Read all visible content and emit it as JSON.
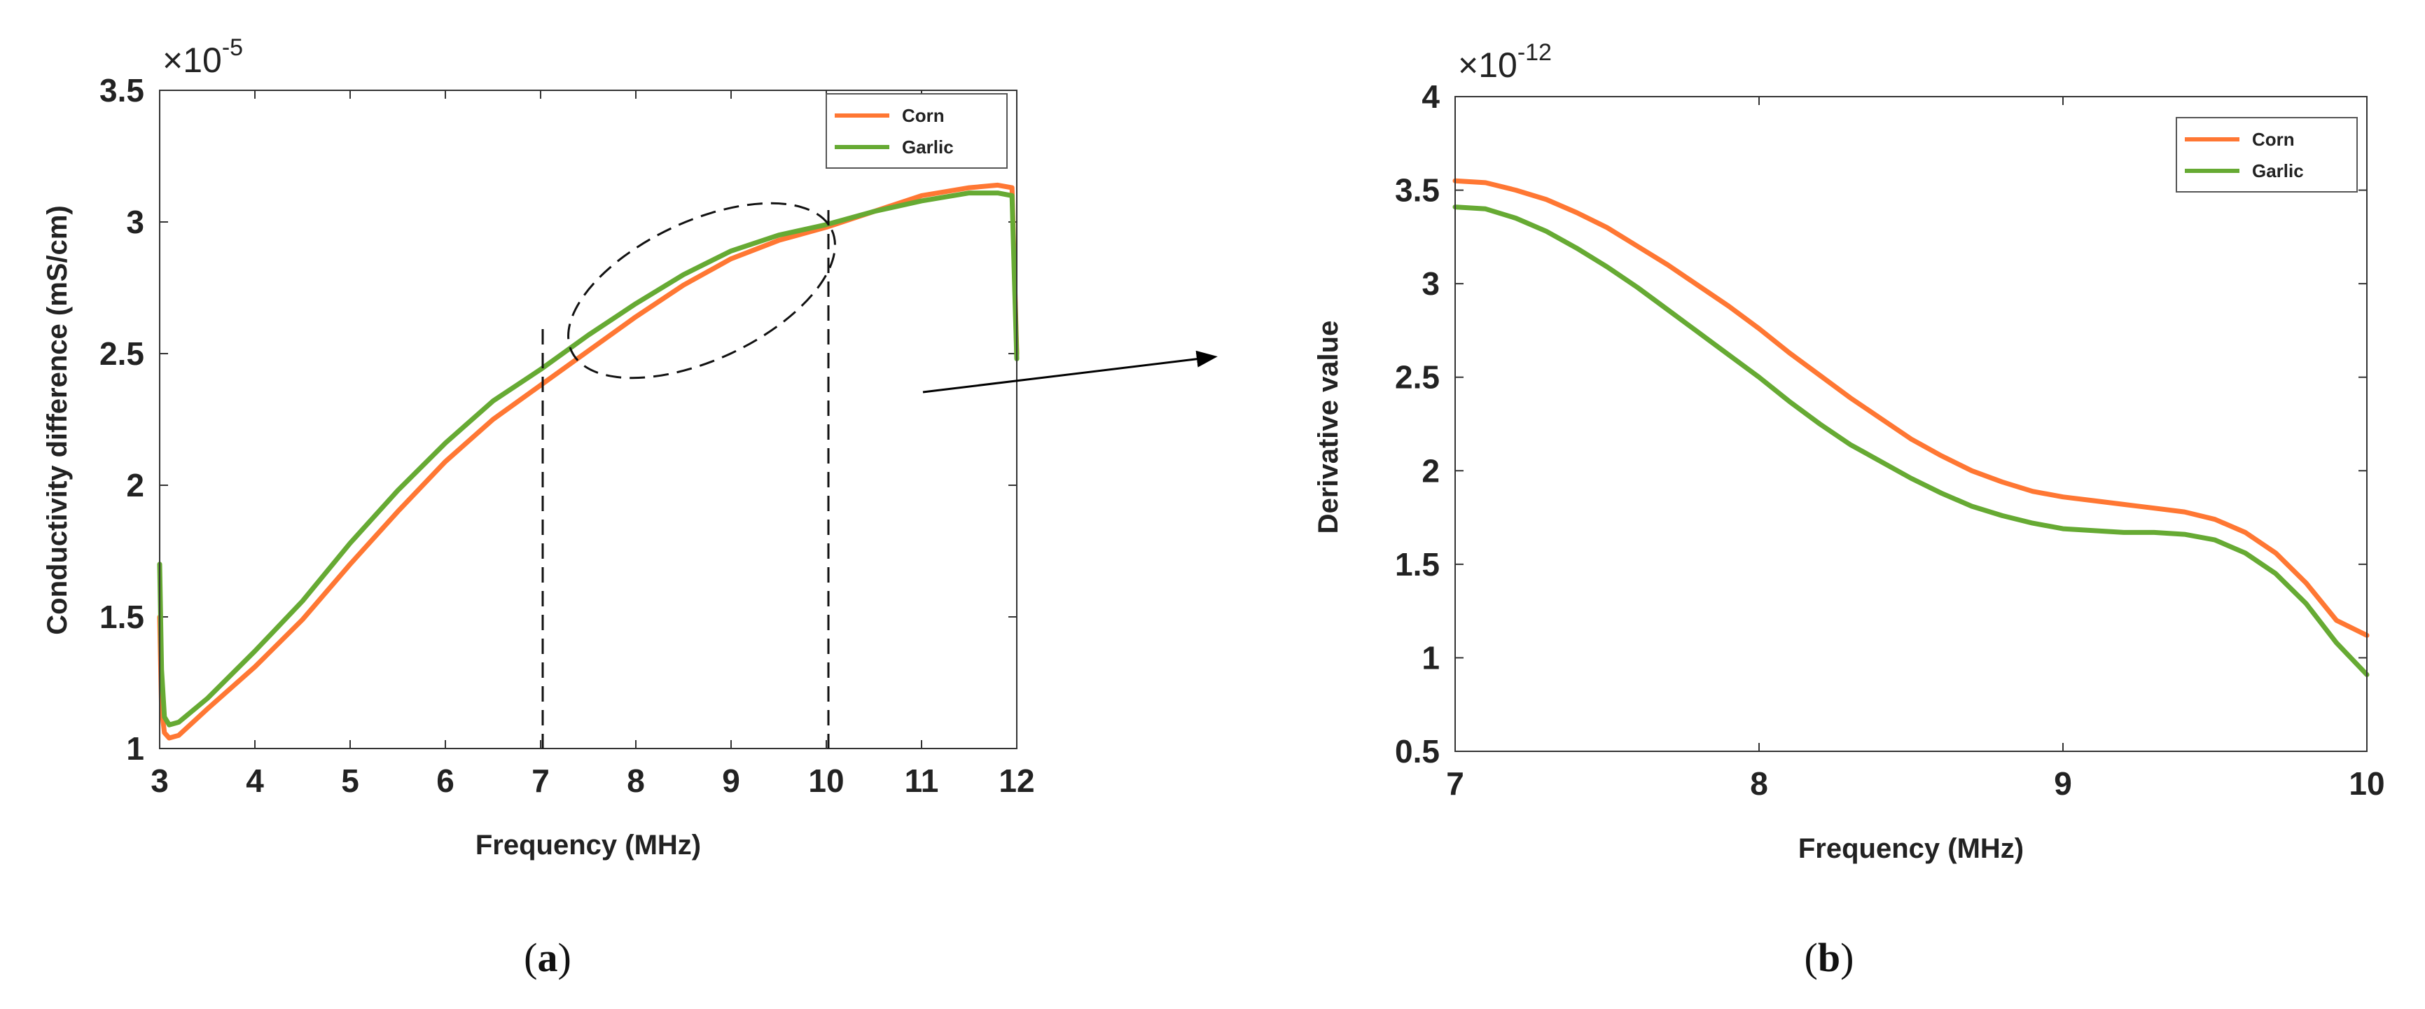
{
  "chart_data": [
    {
      "id": "a",
      "type": "line",
      "caption": "a",
      "title": "",
      "xlabel": "Frequency (MHz)",
      "ylabel": "Conductivity difference (mS/cm)",
      "y_exponent_base": "×10",
      "y_exponent_power": "-5",
      "xlim": [
        3,
        12
      ],
      "ylim": [
        1,
        3.5
      ],
      "xticks": [
        3,
        4,
        5,
        6,
        7,
        8,
        9,
        10,
        11,
        12
      ],
      "xtick_labels": [
        "3",
        "4",
        "5",
        "6",
        "7",
        "8",
        "9",
        "10",
        "11",
        "12"
      ],
      "yticks": [
        1,
        1.5,
        2,
        2.5,
        3,
        3.5
      ],
      "ytick_labels": [
        "1",
        "1.5",
        "2",
        "2.5",
        "3",
        "3.5"
      ],
      "legend_position": "top-right",
      "series": [
        {
          "name": "Corn",
          "color": "#ff7733",
          "x": [
            3.0,
            3.02,
            3.05,
            3.1,
            3.2,
            3.5,
            4.0,
            4.5,
            5.0,
            5.5,
            6.0,
            6.5,
            7.0,
            7.5,
            8.0,
            8.5,
            9.0,
            9.5,
            10.0,
            10.5,
            11.0,
            11.5,
            11.8,
            11.95,
            11.98,
            12.0
          ],
          "values": [
            1.5,
            1.15,
            1.06,
            1.04,
            1.05,
            1.15,
            1.31,
            1.49,
            1.7,
            1.9,
            2.09,
            2.25,
            2.38,
            2.51,
            2.64,
            2.76,
            2.86,
            2.93,
            2.98,
            3.04,
            3.1,
            3.13,
            3.14,
            3.13,
            2.75,
            2.5
          ]
        },
        {
          "name": "Garlic",
          "color": "#66aa33",
          "x": [
            3.0,
            3.02,
            3.05,
            3.1,
            3.2,
            3.5,
            4.0,
            4.5,
            5.0,
            5.5,
            6.0,
            6.5,
            7.0,
            7.5,
            8.0,
            8.5,
            9.0,
            9.5,
            10.0,
            10.5,
            11.0,
            11.5,
            11.8,
            11.95,
            11.98,
            12.0
          ],
          "values": [
            1.7,
            1.3,
            1.12,
            1.09,
            1.1,
            1.19,
            1.37,
            1.56,
            1.78,
            1.98,
            2.16,
            2.32,
            2.44,
            2.57,
            2.69,
            2.8,
            2.89,
            2.95,
            2.99,
            3.04,
            3.08,
            3.11,
            3.11,
            3.1,
            2.72,
            2.48
          ]
        }
      ],
      "annotations": [
        "dashed ellipse around 7–10 MHz region",
        "dashed vertical lines at 7 and 10 MHz",
        "arrow pointing to panel (b)"
      ]
    },
    {
      "id": "b",
      "type": "line",
      "caption": "b",
      "title": "",
      "xlabel": "Frequency (MHz)",
      "ylabel": "Derivative value",
      "y_exponent_base": "×10",
      "y_exponent_power": "-12",
      "xlim": [
        7,
        10
      ],
      "ylim": [
        0.5,
        4
      ],
      "xticks": [
        7,
        8,
        9,
        10
      ],
      "xtick_labels": [
        "7",
        "8",
        "9",
        "10"
      ],
      "yticks": [
        0.5,
        1,
        1.5,
        2,
        2.5,
        3,
        3.5,
        4
      ],
      "ytick_labels": [
        "0.5",
        "1",
        "1.5",
        "2",
        "2.5",
        "3",
        "3.5",
        "4"
      ],
      "legend_position": "top-right",
      "series": [
        {
          "name": "Corn",
          "color": "#ff7733",
          "x": [
            7.0,
            7.1,
            7.2,
            7.3,
            7.4,
            7.5,
            7.6,
            7.7,
            7.8,
            7.9,
            8.0,
            8.1,
            8.2,
            8.3,
            8.4,
            8.5,
            8.6,
            8.7,
            8.8,
            8.9,
            9.0,
            9.1,
            9.2,
            9.3,
            9.4,
            9.5,
            9.6,
            9.7,
            9.8,
            9.9,
            10.0
          ],
          "values": [
            3.55,
            3.54,
            3.5,
            3.45,
            3.38,
            3.3,
            3.2,
            3.1,
            2.99,
            2.88,
            2.76,
            2.63,
            2.51,
            2.39,
            2.28,
            2.17,
            2.08,
            2.0,
            1.94,
            1.89,
            1.86,
            1.84,
            1.82,
            1.8,
            1.78,
            1.74,
            1.67,
            1.56,
            1.4,
            1.2,
            1.12
          ]
        },
        {
          "name": "Garlic",
          "color": "#66aa33",
          "x": [
            7.0,
            7.1,
            7.2,
            7.3,
            7.4,
            7.5,
            7.6,
            7.7,
            7.8,
            7.9,
            8.0,
            8.1,
            8.2,
            8.3,
            8.4,
            8.5,
            8.6,
            8.7,
            8.8,
            8.9,
            9.0,
            9.1,
            9.2,
            9.3,
            9.4,
            9.5,
            9.6,
            9.7,
            9.8,
            9.9,
            10.0
          ],
          "values": [
            3.41,
            3.4,
            3.35,
            3.28,
            3.19,
            3.09,
            2.98,
            2.86,
            2.74,
            2.62,
            2.5,
            2.37,
            2.25,
            2.14,
            2.05,
            1.96,
            1.88,
            1.81,
            1.76,
            1.72,
            1.69,
            1.68,
            1.67,
            1.67,
            1.66,
            1.63,
            1.56,
            1.45,
            1.29,
            1.08,
            0.91
          ]
        }
      ]
    }
  ]
}
